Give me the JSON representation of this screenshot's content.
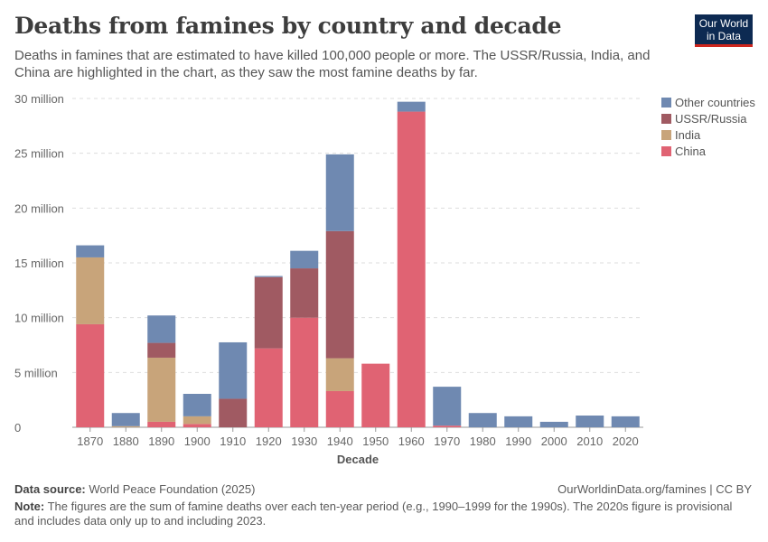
{
  "title": "Deaths from famines by country and decade",
  "subtitle": "Deaths in famines that are estimated to have killed 100,000 people or more. The USSR/Russia, India, and China are highlighted in the chart, as they saw the most famine deaths by far.",
  "logo": {
    "line1": "Our World",
    "line2": "in Data"
  },
  "footer": {
    "source_label": "Data source:",
    "source": "World Peace Foundation (2025)",
    "url": "OurWorldinData.org/famines | CC BY",
    "note_label": "Note:",
    "note": "The figures are the sum of famine deaths over each ten-year period (e.g., 1990–1999 for the 1990s). The 2020s figure is provisional and includes data only up to and including 2023."
  },
  "chart_data": {
    "type": "bar",
    "stacked": true,
    "xlabel": "Decade",
    "ylabel": "",
    "ylim": [
      0,
      30000000
    ],
    "yticks": [
      0,
      5000000,
      10000000,
      15000000,
      20000000,
      25000000,
      30000000
    ],
    "ytick_labels": [
      "0",
      "5 million",
      "10 million",
      "15 million",
      "20 million",
      "25 million",
      "30 million"
    ],
    "grid": true,
    "legend": "top-right",
    "categories": [
      "1870",
      "1880",
      "1890",
      "1900",
      "1910",
      "1920",
      "1930",
      "1940",
      "1950",
      "1960",
      "1970",
      "1980",
      "1990",
      "2000",
      "2010",
      "2020"
    ],
    "series": [
      {
        "name": "China",
        "color": "#e06373",
        "values": [
          9400000,
          0,
          500000,
          300000,
          0,
          7200000,
          10000000,
          3300000,
          5800000,
          28800000,
          150000,
          0,
          0,
          0,
          0,
          0
        ]
      },
      {
        "name": "India",
        "color": "#c8a47a",
        "values": [
          6100000,
          100000,
          5850000,
          700000,
          0,
          0,
          0,
          3000000,
          0,
          0,
          0,
          0,
          0,
          0,
          0,
          0
        ]
      },
      {
        "name": "USSR/Russia",
        "color": "#a05a62",
        "values": [
          0,
          0,
          1350000,
          0,
          2600000,
          6500000,
          4500000,
          11600000,
          0,
          0,
          0,
          0,
          0,
          0,
          0,
          0
        ]
      },
      {
        "name": "Other countries",
        "color": "#6f89b1",
        "values": [
          1100000,
          1200000,
          2500000,
          2050000,
          5150000,
          100000,
          1600000,
          7000000,
          0,
          900000,
          3550000,
          1300000,
          1000000,
          500000,
          1070000,
          1000000
        ]
      }
    ]
  }
}
